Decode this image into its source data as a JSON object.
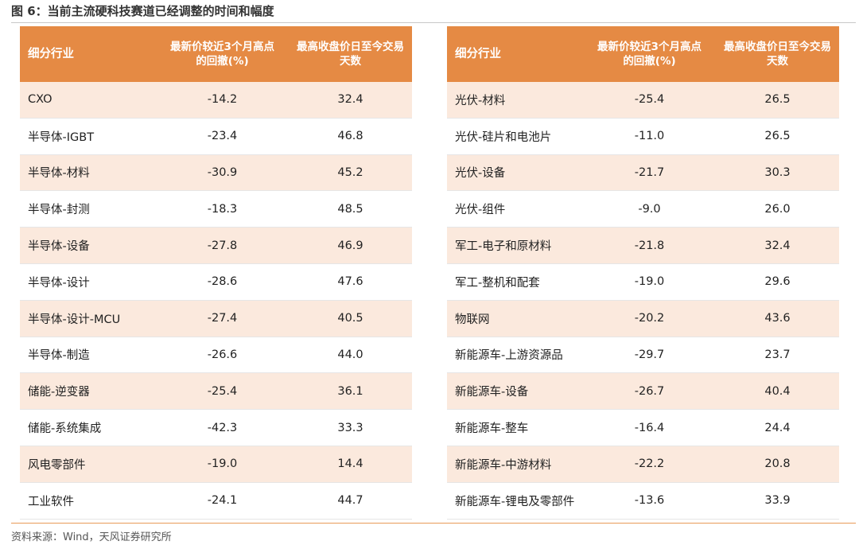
{
  "figure": {
    "title": "图 6：当前主流硬科技赛道已经调整的时间和幅度",
    "source": "资料来源：Wind，天风证券研究所"
  },
  "headers": {
    "col1": "细分行业",
    "col2_line1": "最新价较近3个月高点",
    "col2_line2": "的回撤(%)",
    "col3_line1": "最高收盘价日至今交易",
    "col3_line2": "天数"
  },
  "left_table": [
    {
      "industry": "CXO",
      "drawdown": "-14.2",
      "days": "32.4"
    },
    {
      "industry": "半导体-IGBT",
      "drawdown": "-23.4",
      "days": "46.8"
    },
    {
      "industry": "半导体-材料",
      "drawdown": "-30.9",
      "days": "45.2"
    },
    {
      "industry": "半导体-封测",
      "drawdown": "-18.3",
      "days": "48.5"
    },
    {
      "industry": "半导体-设备",
      "drawdown": "-27.8",
      "days": "46.9"
    },
    {
      "industry": "半导体-设计",
      "drawdown": "-28.6",
      "days": "47.6"
    },
    {
      "industry": "半导体-设计-MCU",
      "drawdown": "-27.4",
      "days": "40.5"
    },
    {
      "industry": "半导体-制造",
      "drawdown": "-26.6",
      "days": "44.0"
    },
    {
      "industry": "储能-逆变器",
      "drawdown": "-25.4",
      "days": "36.1"
    },
    {
      "industry": "储能-系统集成",
      "drawdown": "-42.3",
      "days": "33.3"
    },
    {
      "industry": "风电零部件",
      "drawdown": "-19.0",
      "days": "14.4"
    },
    {
      "industry": "工业软件",
      "drawdown": "-24.1",
      "days": "44.7"
    }
  ],
  "right_table": [
    {
      "industry": "光伏-材料",
      "drawdown": "-25.4",
      "days": "26.5"
    },
    {
      "industry": "光伏-硅片和电池片",
      "drawdown": "-11.0",
      "days": "26.5"
    },
    {
      "industry": "光伏-设备",
      "drawdown": "-21.7",
      "days": "30.3"
    },
    {
      "industry": "光伏-组件",
      "drawdown": "-9.0",
      "days": "26.0"
    },
    {
      "industry": "军工-电子和原材料",
      "drawdown": "-21.8",
      "days": "32.4"
    },
    {
      "industry": "军工-整机和配套",
      "drawdown": "-19.0",
      "days": "29.6"
    },
    {
      "industry": "物联网",
      "drawdown": "-20.2",
      "days": "43.6"
    },
    {
      "industry": "新能源车-上游资源品",
      "drawdown": "-29.7",
      "days": "23.7"
    },
    {
      "industry": "新能源车-设备",
      "drawdown": "-26.7",
      "days": "40.4"
    },
    {
      "industry": "新能源车-整车",
      "drawdown": "-16.4",
      "days": "24.4"
    },
    {
      "industry": "新能源车-中游材料",
      "drawdown": "-22.2",
      "days": "20.8"
    },
    {
      "industry": "新能源车-锂电及零部件",
      "drawdown": "-13.6",
      "days": "33.9"
    }
  ],
  "colors": {
    "header_bg": "#e58a44",
    "header_text": "#ffffff",
    "row_alt_bg": "#fbe9dd",
    "bottom_rule": "#e89a57"
  }
}
